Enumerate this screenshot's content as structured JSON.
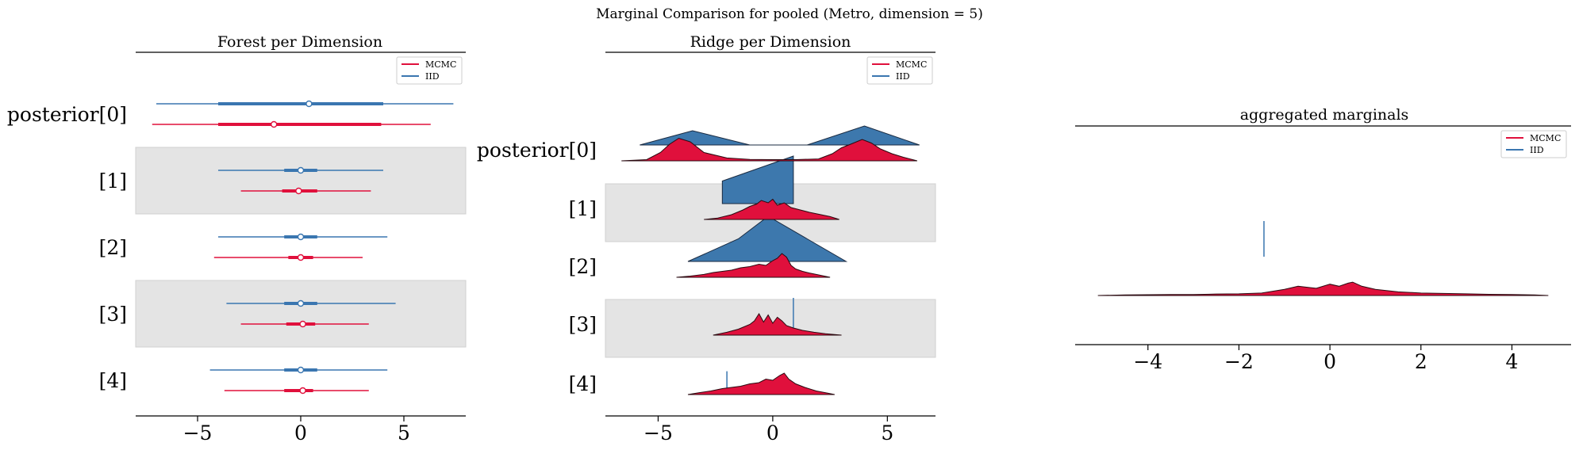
{
  "figure": {
    "suptitle": "Marginal Comparison for pooled (Metro, dimension = 5)"
  },
  "colors": {
    "mcmc": "#e0103c",
    "iid": "#3a76b0",
    "band": "#e4e4e4",
    "mcmc_fill": "#e0103c",
    "iid_fill": "#3d78ad"
  },
  "legend": {
    "mcmc": "MCMC",
    "iid": "IID"
  },
  "chart_data": [
    {
      "type": "forest",
      "title": "Forest per Dimension",
      "xlim": [
        -8,
        8
      ],
      "xticks": [
        -5,
        0,
        5
      ],
      "xtick_labels": [
        "−5",
        "0",
        "5"
      ],
      "legend_placement": "top-right",
      "grid": false,
      "categories": [
        "posterior[0]",
        "[1]",
        "[2]",
        "[3]",
        "[4]"
      ],
      "series": [
        {
          "name": "MCMC",
          "values": [
            {
              "low": -7.2,
              "q1": -4.0,
              "mid": -1.3,
              "q3": 3.9,
              "high": 6.3
            },
            {
              "low": -2.9,
              "q1": -0.9,
              "mid": -0.1,
              "q3": 0.8,
              "high": 3.4
            },
            {
              "low": -4.2,
              "q1": -0.6,
              "mid": 0.0,
              "q3": 0.6,
              "high": 3.0
            },
            {
              "low": -2.9,
              "q1": -0.7,
              "mid": 0.1,
              "q3": 0.7,
              "high": 3.3
            },
            {
              "low": -3.7,
              "q1": -0.8,
              "mid": 0.1,
              "q3": 0.6,
              "high": 3.3
            }
          ]
        },
        {
          "name": "IID",
          "values": [
            {
              "low": -7.0,
              "q1": -4.0,
              "mid": 0.4,
              "q3": 4.0,
              "high": 7.4
            },
            {
              "low": -4.0,
              "q1": -0.8,
              "mid": 0.0,
              "q3": 0.8,
              "high": 4.0
            },
            {
              "low": -4.0,
              "q1": -0.8,
              "mid": 0.0,
              "q3": 0.8,
              "high": 4.2
            },
            {
              "low": -3.6,
              "q1": -0.8,
              "mid": 0.0,
              "q3": 0.8,
              "high": 4.6
            },
            {
              "low": -4.4,
              "q1": -0.8,
              "mid": 0.0,
              "q3": 0.8,
              "high": 4.2
            }
          ]
        }
      ]
    },
    {
      "type": "ridge",
      "title": "Ridge per Dimension",
      "xlim": [
        -7.3,
        7.1
      ],
      "xticks": [
        -5,
        0,
        5
      ],
      "xtick_labels": [
        "−5",
        "0",
        "5"
      ],
      "legend_placement": "top-right",
      "grid": false,
      "categories": [
        "posterior[0]",
        "[1]",
        "[2]",
        "[3]",
        "[4]"
      ],
      "series": [
        {
          "name": "MCMC",
          "ridges": [
            {
              "x": [
                -6.6,
                -5.5,
                -4.9,
                -4.5,
                -4.1,
                -3.6,
                -3.0,
                -2.0,
                -1.0,
                0.0,
                1.0,
                2.0,
                2.6,
                3.0,
                3.4,
                3.9,
                4.3,
                4.7,
                5.2,
                5.7,
                6.3
              ],
              "y": [
                0.0,
                0.05,
                0.35,
                0.7,
                0.95,
                0.8,
                0.35,
                0.12,
                0.06,
                0.05,
                0.05,
                0.08,
                0.3,
                0.55,
                0.7,
                0.9,
                0.75,
                0.5,
                0.3,
                0.15,
                0.0
              ]
            },
            {
              "x": [
                -3.0,
                -2.4,
                -1.8,
                -1.3,
                -1.0,
                -0.7,
                -0.5,
                -0.2,
                0.0,
                0.2,
                0.5,
                0.8,
                1.2,
                1.6,
                2.0,
                2.5,
                2.9
              ],
              "y": [
                0.0,
                0.06,
                0.2,
                0.4,
                0.55,
                0.65,
                0.8,
                0.7,
                0.85,
                0.6,
                0.7,
                0.5,
                0.4,
                0.3,
                0.22,
                0.12,
                0.0
              ]
            },
            {
              "x": [
                -4.2,
                -3.6,
                -3.0,
                -2.6,
                -2.2,
                -1.8,
                -1.4,
                -1.0,
                -0.6,
                -0.3,
                0.0,
                0.2,
                0.4,
                0.6,
                0.8,
                1.0,
                1.3,
                1.6,
                2.0,
                2.5
              ],
              "y": [
                0.0,
                0.05,
                0.12,
                0.2,
                0.25,
                0.3,
                0.4,
                0.45,
                0.55,
                0.5,
                0.7,
                0.8,
                1.0,
                0.85,
                0.5,
                0.35,
                0.25,
                0.18,
                0.1,
                0.0
              ]
            },
            {
              "x": [
                -2.6,
                -2.0,
                -1.5,
                -1.0,
                -0.8,
                -0.6,
                -0.4,
                -0.2,
                0.0,
                0.2,
                0.4,
                0.6,
                0.9,
                1.3,
                1.8,
                2.3,
                3.0
              ],
              "y": [
                0.0,
                0.12,
                0.25,
                0.45,
                0.6,
                0.9,
                0.55,
                0.85,
                0.5,
                0.75,
                0.6,
                0.4,
                0.3,
                0.2,
                0.12,
                0.06,
                0.0
              ]
            },
            {
              "x": [
                -3.7,
                -3.2,
                -2.7,
                -2.2,
                -1.8,
                -1.4,
                -1.0,
                -0.6,
                -0.3,
                0.0,
                0.3,
                0.5,
                0.7,
                1.0,
                1.4,
                1.9,
                2.4,
                2.7
              ],
              "y": [
                0.0,
                0.08,
                0.15,
                0.25,
                0.3,
                0.35,
                0.45,
                0.5,
                0.65,
                0.6,
                0.8,
                0.9,
                0.65,
                0.45,
                0.3,
                0.15,
                0.06,
                0.0
              ]
            }
          ]
        },
        {
          "name": "IID",
          "ridges": [
            {
              "x": [
                -5.8,
                -3.5,
                -1.0,
                1.5,
                4.0,
                6.4
              ],
              "y": [
                0.0,
                0.6,
                0.0,
                0.0,
                0.8,
                0.0
              ]
            },
            {
              "x": [
                -2.2,
                -2.2,
                0.9,
                0.9
              ],
              "y": [
                0.0,
                0.95,
                2.0,
                0.0
              ]
            },
            {
              "x": [
                -3.7,
                -1.5,
                -0.2,
                1.5,
                3.2
              ],
              "y": [
                0.0,
                0.95,
                1.9,
                0.95,
                0.0
              ]
            },
            {
              "x": [
                0.9,
                0.9
              ],
              "y": [
                0.0,
                0.0
              ]
            },
            {
              "x": [
                -2.0,
                -2.0
              ],
              "y": [
                0.0,
                0.0
              ]
            }
          ]
        }
      ],
      "iid_spikes": [
        {
          "row": 3,
          "x": 0.9,
          "height": 1.0
        },
        {
          "row": 4,
          "x": -2.0,
          "height": 0.6
        }
      ]
    },
    {
      "type": "area",
      "title": "aggregated marginals",
      "xlim": [
        -5.6,
        5.3
      ],
      "xticks": [
        -4,
        -2,
        0,
        2,
        4
      ],
      "xtick_labels": [
        "−4",
        "−2",
        "0",
        "2",
        "4"
      ],
      "legend_placement": "top-right",
      "grid": false,
      "series": [
        {
          "name": "MCMC",
          "x": [
            -5.1,
            -4.5,
            -4.0,
            -3.5,
            -3.0,
            -2.5,
            -2.0,
            -1.5,
            -1.0,
            -0.7,
            -0.3,
            0.0,
            0.2,
            0.4,
            0.5,
            0.7,
            1.0,
            1.5,
            2.0,
            2.5,
            3.0,
            3.5,
            4.0,
            4.5,
            4.8
          ],
          "y": [
            0.0,
            0.03,
            0.04,
            0.05,
            0.05,
            0.07,
            0.08,
            0.12,
            0.3,
            0.45,
            0.35,
            0.55,
            0.45,
            0.6,
            0.65,
            0.45,
            0.3,
            0.18,
            0.12,
            0.1,
            0.08,
            0.06,
            0.05,
            0.03,
            0.0
          ]
        },
        {
          "name": "IID",
          "spike_x": -1.45,
          "spike_height": 0.9
        }
      ]
    }
  ]
}
